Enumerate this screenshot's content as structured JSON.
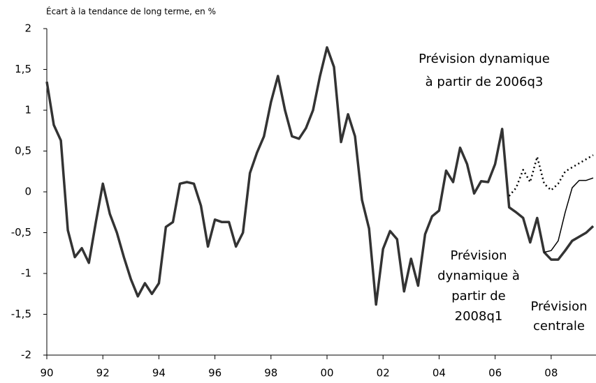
{
  "chart_data": {
    "type": "line",
    "y_label": "Écart à la tendance de long terme, en %",
    "xlim": [
      1990,
      2009.6
    ],
    "ylim": [
      -2,
      2
    ],
    "xticks": [
      {
        "value": 1990,
        "label": "90"
      },
      {
        "value": 1992,
        "label": "92"
      },
      {
        "value": 1994,
        "label": "94"
      },
      {
        "value": 1996,
        "label": "96"
      },
      {
        "value": 1998,
        "label": "98"
      },
      {
        "value": 2000,
        "label": "00"
      },
      {
        "value": 2002,
        "label": "02"
      },
      {
        "value": 2004,
        "label": "04"
      },
      {
        "value": 2006,
        "label": "06"
      },
      {
        "value": 2008,
        "label": "08"
      }
    ],
    "yticks": [
      2,
      {
        "value": 1.5,
        "label": "1,5"
      },
      1,
      {
        "value": 0.5,
        "label": "0,5"
      },
      0,
      {
        "value": -0.5,
        "label": "-0,5"
      },
      -1,
      {
        "value": -1.5,
        "label": "-1,5"
      },
      -2
    ],
    "series": [
      {
        "color": "#333333",
        "width": 3.5,
        "dash": "none",
        "x": [
          1990,
          1990.25,
          1990.5,
          1990.75,
          1991,
          1991.25,
          1991.5,
          1991.75,
          1992,
          1992.25,
          1992.5,
          1992.75,
          1993,
          1993.25,
          1993.5,
          1993.75,
          1994,
          1994.25,
          1994.5,
          1994.75,
          1995,
          1995.25,
          1995.5,
          1995.75,
          1996,
          1996.25,
          1996.5,
          1996.75,
          1997,
          1997.25,
          1997.5,
          1997.75,
          1998,
          1998.25,
          1998.5,
          1998.75,
          1999,
          1999.25,
          1999.5,
          1999.75,
          2000,
          2000.25,
          2000.5,
          2000.75,
          2001,
          2001.25,
          2001.5,
          2001.75,
          2002,
          2002.25,
          2002.5,
          2002.75,
          2003,
          2003.25,
          2003.5,
          2003.75,
          2004,
          2004.25,
          2004.5,
          2004.75,
          2005,
          2005.25,
          2005.5,
          2005.75,
          2006,
          2006.25,
          2006.5,
          2006.75,
          2007,
          2007.25,
          2007.5,
          2007.75,
          2008,
          2008.25,
          2008.5,
          2008.75,
          2009,
          2009.25,
          2009.5
        ],
        "values": [
          1.35,
          0.82,
          0.63,
          -0.47,
          -0.8,
          -0.69,
          -0.87,
          -0.37,
          0.1,
          -0.27,
          -0.5,
          -0.8,
          -1.07,
          -1.28,
          -1.12,
          -1.25,
          -1.12,
          -0.43,
          -0.37,
          0.1,
          0.12,
          0.1,
          -0.17,
          -0.67,
          -0.34,
          -0.37,
          -0.37,
          -0.67,
          -0.5,
          0.23,
          0.48,
          0.68,
          1.1,
          1.42,
          1.0,
          0.68,
          0.65,
          0.78,
          1.0,
          1.42,
          1.77,
          1.53,
          0.61,
          0.95,
          0.68,
          -0.1,
          -0.45,
          -1.38,
          -0.7,
          -0.48,
          -0.58,
          -1.22,
          -0.82,
          -1.15,
          -0.52,
          -0.3,
          -0.23,
          0.26,
          0.12,
          0.54,
          0.34,
          -0.02,
          0.13,
          0.12,
          0.34,
          0.77,
          -0.19,
          -0.25,
          -0.32,
          -0.62,
          -0.32,
          -0.74,
          -0.83,
          -0.83,
          -0.72,
          -0.6,
          -0.55,
          -0.5,
          -0.42
        ]
      },
      {
        "color": "#000000",
        "width": 2.5,
        "dash": "2 4",
        "x": [
          2006.5,
          2006.75,
          2007,
          2007.25,
          2007.5,
          2007.75,
          2008,
          2008.25,
          2008.5,
          2008.75,
          2009,
          2009.25,
          2009.5
        ],
        "values": [
          -0.05,
          0.05,
          0.27,
          0.12,
          0.43,
          0.1,
          0.02,
          0.1,
          0.25,
          0.3,
          0.35,
          0.4,
          0.45
        ]
      },
      {
        "color": "#000000",
        "width": 1.5,
        "dash": "none",
        "x": [
          2007.75,
          2008,
          2008.25,
          2008.5,
          2008.75,
          2009,
          2009.25,
          2009.5
        ],
        "values": [
          -0.74,
          -0.72,
          -0.6,
          -0.25,
          0.05,
          0.14,
          0.14,
          0.17
        ]
      }
    ],
    "annotations": [
      {
        "lines": [
          "Prévision dynamique",
          "à partir de 2006q3"
        ]
      },
      {
        "lines": [
          "Prévision",
          "dynamique à",
          "partir de",
          "2008q1"
        ]
      },
      {
        "lines": [
          "Prévision",
          "centrale"
        ]
      }
    ]
  }
}
